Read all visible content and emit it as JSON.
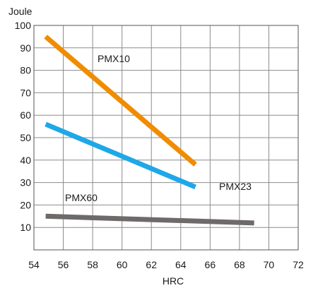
{
  "chart_data": {
    "type": "line",
    "title": "",
    "xlabel": "HRC",
    "ylabel": "Joule",
    "xlim": [
      54,
      72
    ],
    "ylim": [
      0,
      100
    ],
    "x_ticks": [
      54,
      56,
      58,
      60,
      62,
      64,
      66,
      68,
      70,
      72
    ],
    "y_ticks": [
      10,
      20,
      30,
      40,
      50,
      60,
      70,
      80,
      90,
      100
    ],
    "grid": true,
    "series": [
      {
        "name": "PMX10",
        "color": "#f08c00",
        "points": [
          [
            54.8,
            95
          ],
          [
            65,
            38
          ]
        ]
      },
      {
        "name": "PMX23",
        "color": "#1ea8e8",
        "points": [
          [
            54.8,
            56
          ],
          [
            65,
            28
          ]
        ]
      },
      {
        "name": "PMX60",
        "color": "#6e6a6a",
        "points": [
          [
            54.8,
            15
          ],
          [
            69,
            12
          ]
        ]
      }
    ]
  }
}
